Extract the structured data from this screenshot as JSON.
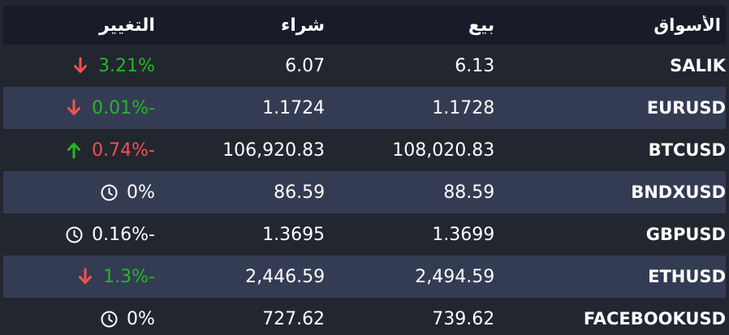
{
  "colors": {
    "page_background": "#22262f",
    "header_background": "#181b28",
    "highlight_row_background": "#343c54",
    "text": "#ffffff",
    "green": "#26b626",
    "red": "#ef5350",
    "white": "#ffffff"
  },
  "table": {
    "columns": [
      {
        "key": "market",
        "label": "الأسواق"
      },
      {
        "key": "sell",
        "label": "بيع"
      },
      {
        "key": "buy",
        "label": "شراء"
      },
      {
        "key": "change",
        "label": "التغيير"
      }
    ],
    "rows": [
      {
        "market": "SALIK",
        "sell": "6.13",
        "buy": "6.07",
        "change": "3.21%",
        "change_color": "green",
        "icon": "arrow-down",
        "icon_color": "red",
        "highlighted": false
      },
      {
        "market": "EURUSD",
        "sell": "1.1728",
        "buy": "1.1724",
        "change": "0.01%-",
        "change_color": "green",
        "icon": "arrow-down",
        "icon_color": "red",
        "highlighted": true
      },
      {
        "market": "BTCUSD",
        "sell": "108,020.83",
        "buy": "106,920.83",
        "change": "0.74%-",
        "change_color": "red",
        "icon": "arrow-up",
        "icon_color": "green",
        "highlighted": false
      },
      {
        "market": "BNDXUSD",
        "sell": "88.59",
        "buy": "86.59",
        "change": "0%",
        "change_color": "white",
        "icon": "clock",
        "icon_color": "white",
        "highlighted": true
      },
      {
        "market": "GBPUSD",
        "sell": "1.3699",
        "buy": "1.3695",
        "change": "0.16%-",
        "change_color": "white",
        "icon": "clock",
        "icon_color": "white",
        "highlighted": false
      },
      {
        "market": "ETHUSD",
        "sell": "2,494.59",
        "buy": "2,446.59",
        "change": "1.3%-",
        "change_color": "green",
        "icon": "arrow-down",
        "icon_color": "red",
        "highlighted": true
      },
      {
        "market": "FACEBOOKUSD",
        "sell": "739.62",
        "buy": "727.62",
        "change": "0%",
        "change_color": "white",
        "icon": "clock",
        "icon_color": "white",
        "highlighted": false
      }
    ]
  }
}
